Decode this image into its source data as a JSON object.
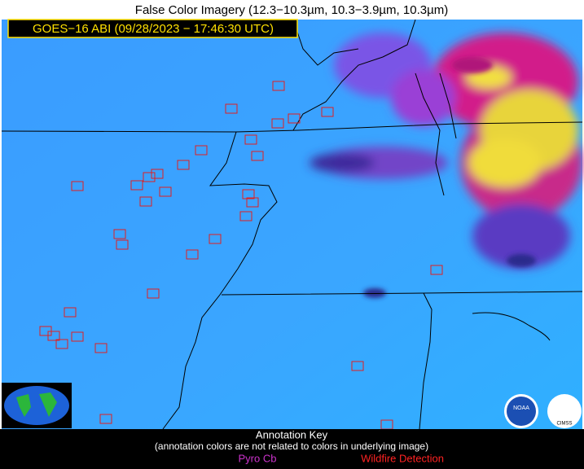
{
  "header": {
    "title": "False Color Imagery (12.3−10.3µm, 10.3−3.9µm, 10.3µm)",
    "timestamp": "GOES−16 ABI (09/28/2023 − 17:46:30 UTC)"
  },
  "logos": {
    "noaa": "NOAA",
    "cimss": "CIMSS"
  },
  "annotation_key": {
    "title": "Annotation Key",
    "note": "(annotation colors are not related to colors in underlying image)",
    "items": [
      {
        "label": "Pyro Cb",
        "color": "#cc33cc"
      },
      {
        "label": "Wildfire Detection",
        "color": "#ff2222"
      }
    ]
  }
}
